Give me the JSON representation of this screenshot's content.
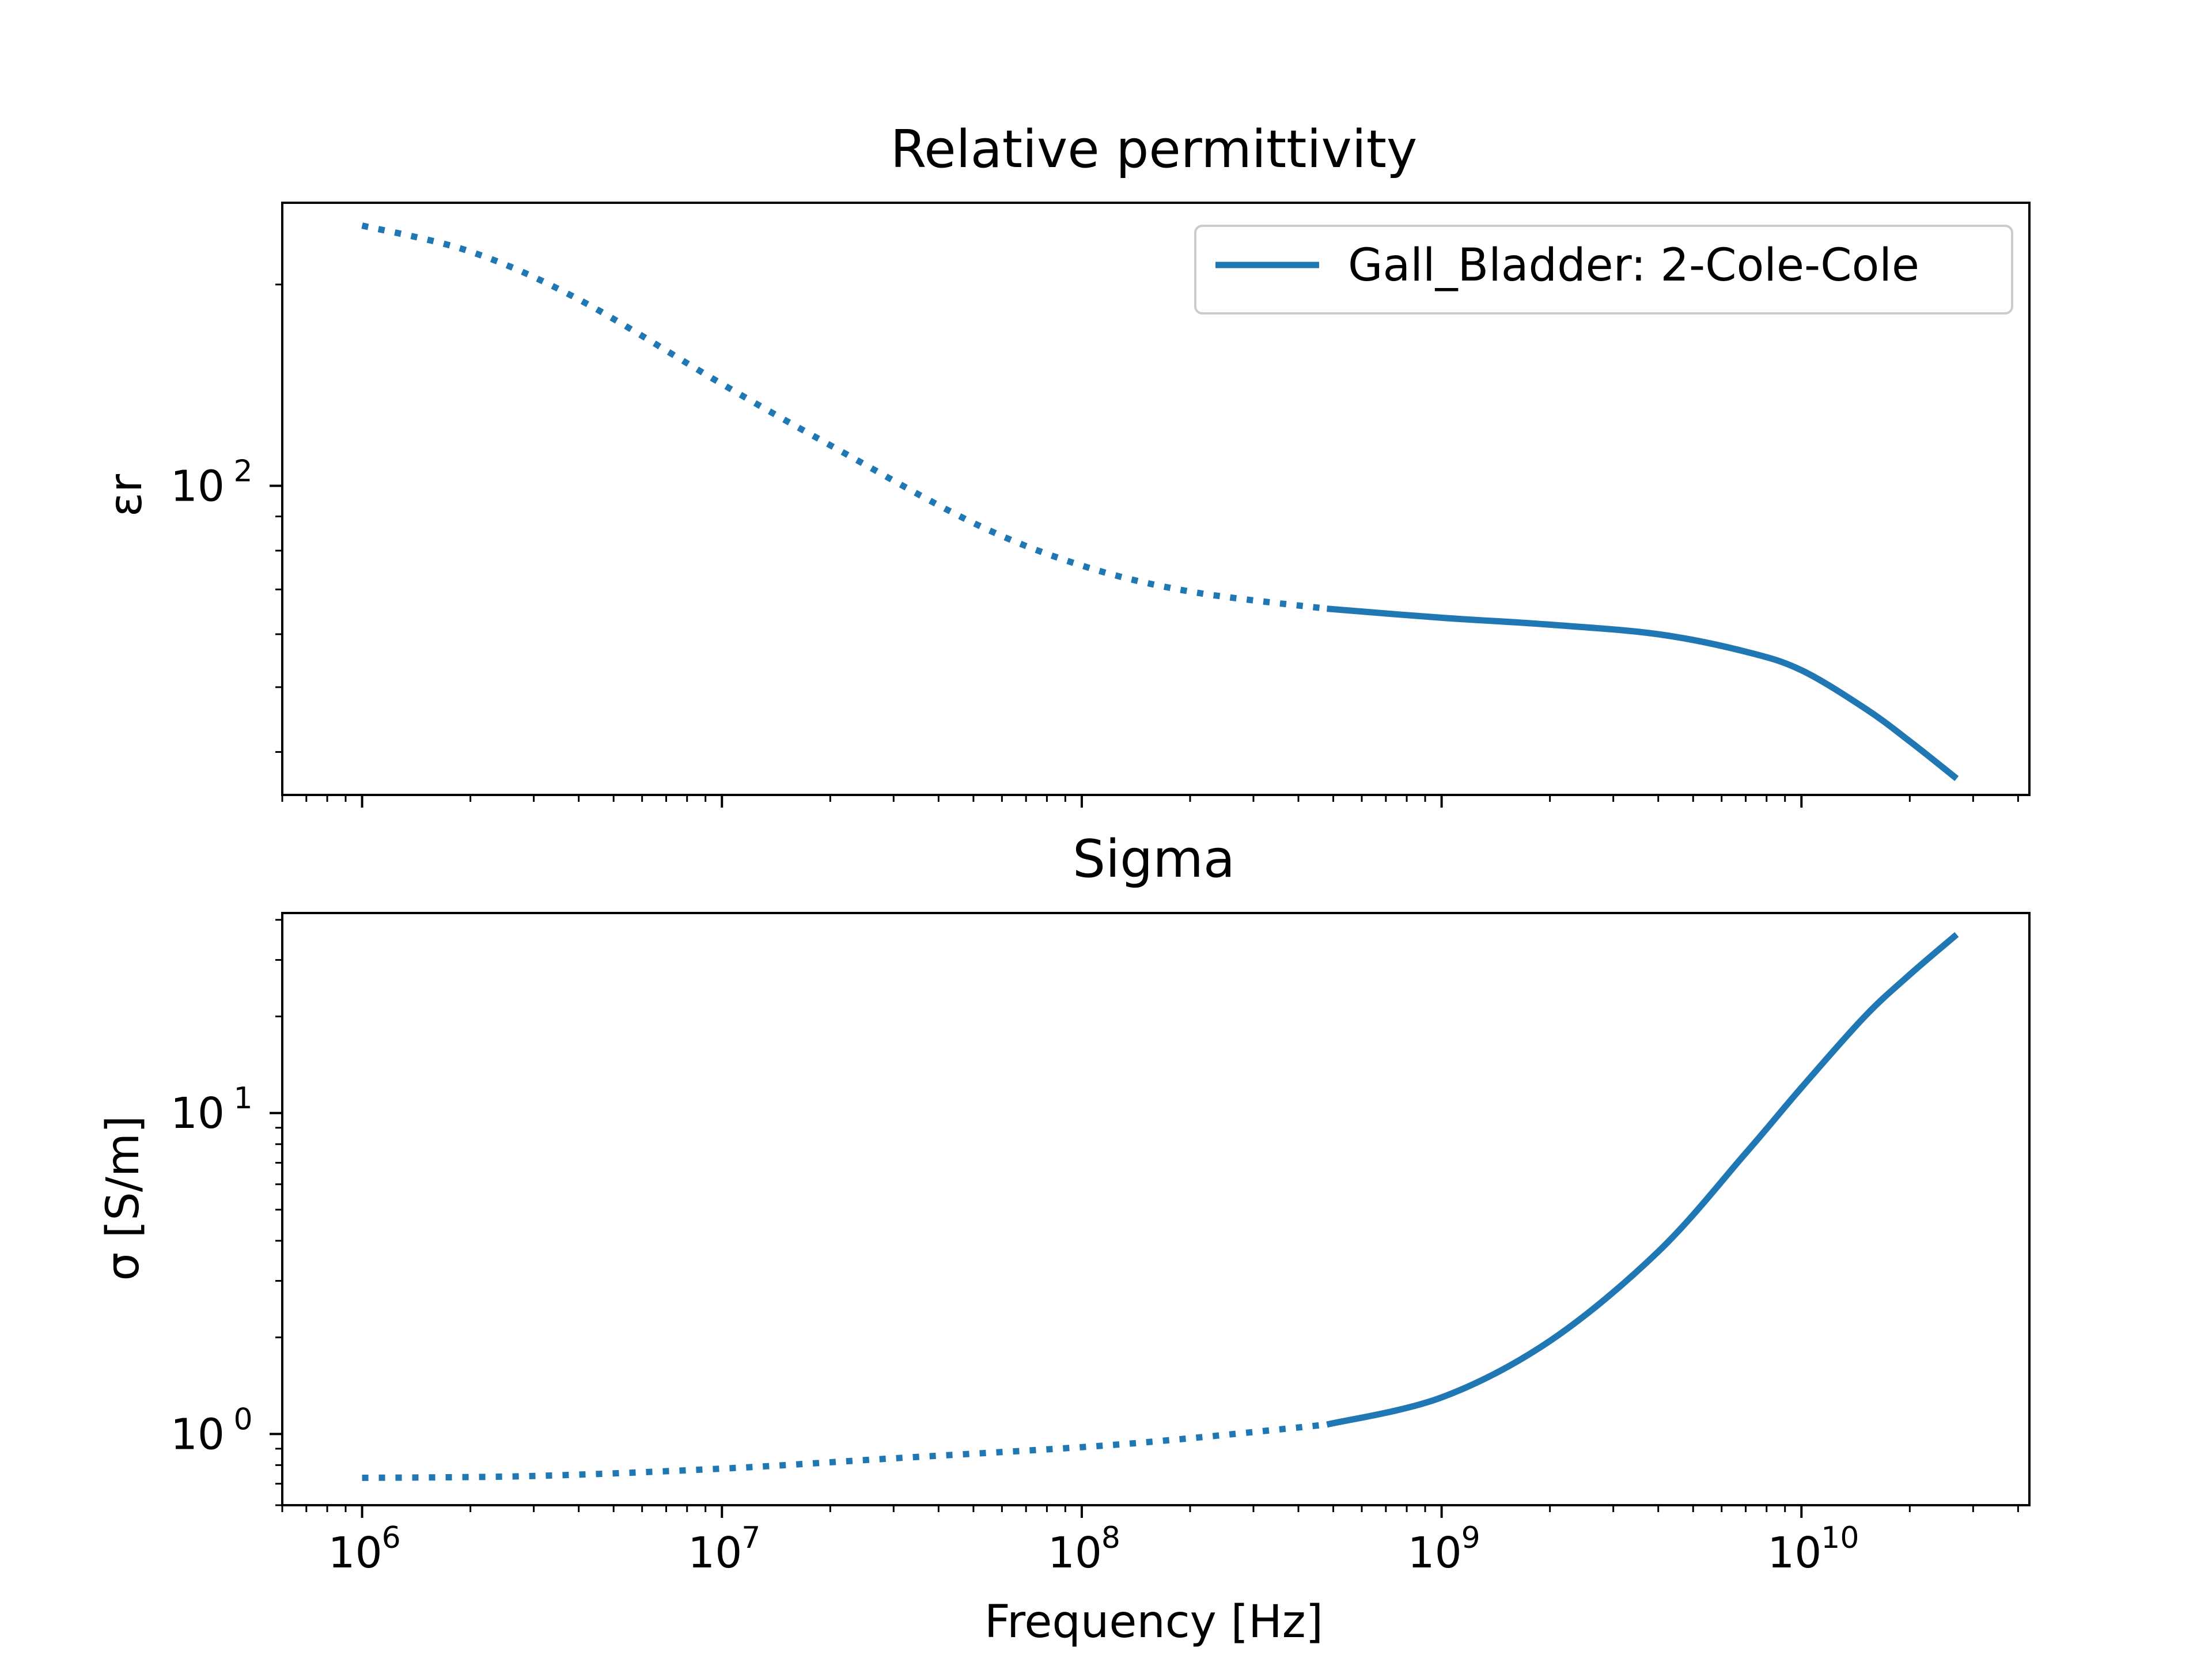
{
  "chart_data": [
    {
      "type": "line",
      "title": "Relative permittivity",
      "xlabel": "",
      "ylabel": "εr",
      "xscale": "log",
      "yscale": "log",
      "xlim": [
        600000,
        43000000000
      ],
      "ylim": [
        34.5,
        265
      ],
      "yticks": [
        {
          "base": "10",
          "exp": "2",
          "value": 100
        }
      ],
      "grid": false,
      "legend": {
        "placement": "top-right",
        "entries": [
          "Gall_Bladder: 2-Cole-Cole"
        ]
      },
      "color": "#1f77b4",
      "series": [
        {
          "name": "Gall_Bladder: 2-Cole-Cole",
          "segments": [
            {
              "style": "dotted",
              "x": [
                1000000,
                2000000,
                4000000,
                10000000,
                20000000,
                50000000,
                100000000,
                200000000,
                480000000
              ],
              "y": [
                245,
                224,
                190,
                142,
                115,
                88,
                76,
                69.5,
                65.5
              ]
            },
            {
              "style": "solid",
              "x": [
                480000000,
                1000000000,
                2000000000,
                4000000000,
                7000000000,
                10000000000,
                15000000000,
                20000000000,
                27000000000
              ],
              "y": [
                65.5,
                63.5,
                62,
                60,
                56.5,
                53,
                46.5,
                41.5,
                36.5
              ]
            }
          ]
        }
      ]
    },
    {
      "type": "line",
      "title": "Sigma",
      "xlabel": "Frequency [Hz]",
      "ylabel": "σ [S/m]",
      "xscale": "log",
      "yscale": "log",
      "xlim": [
        600000,
        43000000000
      ],
      "ylim": [
        0.6,
        42
      ],
      "xticks": [
        {
          "base": "10",
          "exp": "6",
          "value": 1000000
        },
        {
          "base": "10",
          "exp": "7",
          "value": 10000000
        },
        {
          "base": "10",
          "exp": "8",
          "value": 100000000
        },
        {
          "base": "10",
          "exp": "9",
          "value": 1000000000
        },
        {
          "base": "10",
          "exp": "10",
          "value": 10000000000
        }
      ],
      "yticks": [
        {
          "base": "10",
          "exp": "0",
          "value": 1
        },
        {
          "base": "10",
          "exp": "1",
          "value": 10
        }
      ],
      "grid": false,
      "color": "#1f77b4",
      "series": [
        {
          "name": "Gall_Bladder: 2-Cole-Cole",
          "segments": [
            {
              "style": "dotted",
              "x": [
                1000000,
                3000000,
                10000000,
                30000000,
                100000000,
                200000000,
                480000000
              ],
              "y": [
                0.73,
                0.74,
                0.78,
                0.84,
                0.91,
                0.97,
                1.07
              ]
            },
            {
              "style": "solid",
              "x": [
                480000000,
                1000000000,
                2000000000,
                4000000000,
                7000000000,
                10000000000,
                15000000000,
                20000000000,
                27000000000
              ],
              "y": [
                1.07,
                1.3,
                1.95,
                3.7,
                7.5,
                12,
                20,
                27,
                36
              ]
            }
          ]
        }
      ]
    }
  ]
}
